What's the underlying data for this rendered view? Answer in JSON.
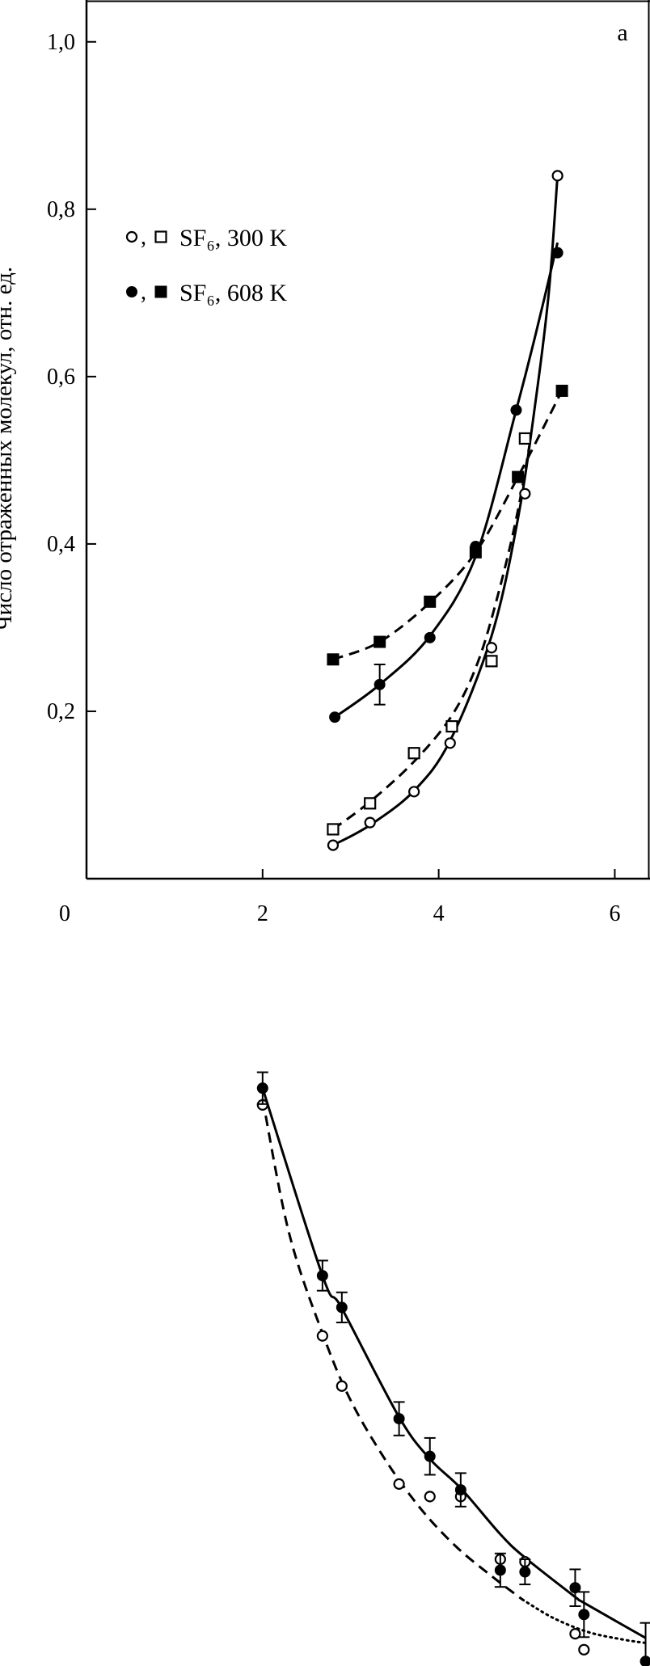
{
  "chart_data": [
    {
      "type": "scatter",
      "panel_label": "a",
      "ylabel": "Число отражённых молекул, отн. ед.",
      "xlabel": "",
      "xlim": [
        0,
        6.4
      ],
      "ylim": [
        0,
        1.05
      ],
      "x_ticks": [
        "0",
        "2",
        "4",
        "6"
      ],
      "y_ticks": [
        "0,2",
        "0,4",
        "0,6",
        "0,8",
        "1,0"
      ],
      "legend": {
        "placement": "upper-left",
        "entries": [
          {
            "label": "SF₆, 300 K",
            "markers": [
              "open-circle",
              "open-square"
            ]
          },
          {
            "label": "SF₆, 608 K",
            "markers": [
              "filled-circle",
              "filled-square"
            ]
          }
        ]
      },
      "series": [
        {
          "marker": "open-circle",
          "line": "solid",
          "x": [
            2.8,
            3.22,
            3.72,
            4.13,
            4.6,
            4.98,
            5.35
          ],
          "y": [
            0.04,
            0.067,
            0.104,
            0.162,
            0.276,
            0.46,
            0.84
          ],
          "fit": [
            [
              2.8,
              0.04
            ],
            [
              3.22,
              0.064
            ],
            [
              3.72,
              0.105
            ],
            [
              4.13,
              0.165
            ],
            [
              4.6,
              0.29
            ],
            [
              4.9,
              0.43
            ],
            [
              5.1,
              0.57
            ],
            [
              5.25,
              0.7
            ],
            [
              5.35,
              0.84
            ]
          ]
        },
        {
          "marker": "open-square",
          "line": "dashed",
          "x": [
            2.8,
            3.22,
            3.72,
            4.15,
            4.6,
            4.98
          ],
          "y": [
            0.059,
            0.09,
            0.15,
            0.182,
            0.26,
            0.526
          ],
          "fit": [
            [
              2.8,
              0.059
            ],
            [
              3.22,
              0.092
            ],
            [
              3.72,
              0.14
            ],
            [
              4.15,
              0.195
            ],
            [
              4.45,
              0.26
            ],
            [
              4.7,
              0.35
            ],
            [
              4.9,
              0.44
            ],
            [
              5.05,
              0.53
            ]
          ]
        },
        {
          "marker": "filled-circle",
          "line": "solid",
          "x": [
            2.82,
            3.33,
            3.9,
            4.42,
            4.88,
            5.35
          ],
          "y": [
            0.193,
            0.232,
            0.288,
            0.397,
            0.56,
            0.748
          ],
          "y_err": [
            null,
            0.024,
            null,
            null,
            null,
            null
          ],
          "fit": [
            [
              2.82,
              0.193
            ],
            [
              3.33,
              0.232
            ],
            [
              3.9,
              0.29
            ],
            [
              4.42,
              0.385
            ],
            [
              4.88,
              0.56
            ],
            [
              5.1,
              0.65
            ],
            [
              5.35,
              0.76
            ]
          ]
        },
        {
          "marker": "filled-square",
          "line": "dashed",
          "x": [
            2.8,
            3.33,
            3.9,
            4.42,
            4.9,
            5.4
          ],
          "y": [
            0.262,
            0.283,
            0.331,
            0.39,
            0.48,
            0.583
          ],
          "fit": [
            [
              2.8,
              0.262
            ],
            [
              3.33,
              0.283
            ],
            [
              3.9,
              0.33
            ],
            [
              4.42,
              0.39
            ],
            [
              4.9,
              0.48
            ],
            [
              5.4,
              0.583
            ]
          ]
        }
      ]
    },
    {
      "type": "scatter",
      "xlim": [
        0,
        6.4
      ],
      "ylim": [
        0,
        1.05
      ],
      "series": [
        {
          "marker": "filled-circle",
          "line": "solid",
          "x": [
            2.0,
            2.68,
            2.9,
            3.55,
            3.9,
            4.25,
            4.7,
            4.98,
            5.55,
            5.65,
            6.35
          ],
          "y": [
            0.733,
            0.509,
            0.471,
            0.338,
            0.293,
            0.253,
            0.157,
            0.155,
            0.136,
            0.104,
            0.048
          ],
          "y_err": [
            0.019,
            0.018,
            0.018,
            0.02,
            0.022,
            0.02,
            0.02,
            0.015,
            0.022,
            0.027,
            0.046
          ],
          "fit": [
            [
              2.0,
              0.733
            ],
            [
              2.68,
              0.509
            ],
            [
              2.9,
              0.47
            ],
            [
              3.55,
              0.34
            ],
            [
              3.9,
              0.29
            ],
            [
              4.25,
              0.255
            ],
            [
              4.7,
              0.2
            ],
            [
              4.98,
              0.172
            ],
            [
              5.55,
              0.125
            ],
            [
              5.65,
              0.118
            ],
            [
              6.35,
              0.076
            ]
          ]
        },
        {
          "marker": "open-circle",
          "line": "dashed-then-dotted",
          "x": [
            2.0,
            2.68,
            2.9,
            3.55,
            3.9,
            4.25,
            4.7,
            4.98,
            5.55,
            5.65
          ],
          "y": [
            0.713,
            0.437,
            0.377,
            0.26,
            0.245,
            0.245,
            0.17,
            0.167,
            0.081,
            0.062
          ],
          "fit_dashed": [
            [
              2.0,
              0.72
            ],
            [
              2.3,
              0.56
            ],
            [
              2.68,
              0.44
            ],
            [
              3.0,
              0.36
            ],
            [
              3.4,
              0.288
            ],
            [
              3.8,
              0.23
            ],
            [
              4.2,
              0.185
            ],
            [
              4.6,
              0.15
            ],
            [
              4.95,
              0.122
            ]
          ],
          "fit_dotted": [
            [
              4.95,
              0.122
            ],
            [
              5.3,
              0.1
            ],
            [
              5.7,
              0.083
            ],
            [
              6.1,
              0.074
            ],
            [
              6.35,
              0.07
            ]
          ]
        }
      ]
    }
  ]
}
